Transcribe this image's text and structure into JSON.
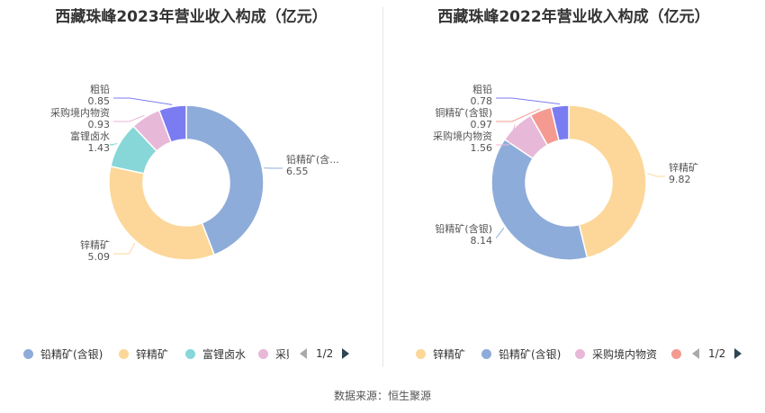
{
  "charts": [
    {
      "id": "left",
      "title": "西藏珠峰2023年营业收入构成（亿元）",
      "chart_data": {
        "type": "pie",
        "title": "西藏珠峰2023年营业收入构成（亿元）",
        "slices": [
          {
            "name": "铅精矿(含银)",
            "label": "铅精矿(含...",
            "value": 6.55,
            "value_label": "6.55",
            "color": "#8eacd9"
          },
          {
            "name": "锌精矿",
            "label": "锌精矿",
            "value": 5.09,
            "value_label": "5.09",
            "color": "#fcd799"
          },
          {
            "name": "富锂卤水",
            "label": "富锂卤水",
            "value": 1.43,
            "value_label": "1.43",
            "color": "#87d7d8"
          },
          {
            "name": "采购境内物资",
            "label": "采购境内物资",
            "value": 0.93,
            "value_label": "0.93",
            "color": "#e8b8d8"
          },
          {
            "name": "粗铅",
            "label": "粗铅",
            "value": 0.85,
            "value_label": "0.85",
            "color": "#7b7cf2"
          }
        ],
        "legend_position": "bottom"
      },
      "legend": {
        "items": [
          {
            "label": "铅精矿(含银)",
            "color": "#8eacd9"
          },
          {
            "label": "锌精矿",
            "color": "#fcd799"
          },
          {
            "label": "富锂卤水",
            "color": "#87d7d8"
          },
          {
            "label": "采购境内物资",
            "color": "#e8b8d8"
          }
        ],
        "page": "1/2"
      }
    },
    {
      "id": "right",
      "title": "西藏珠峰2022年营业收入构成（亿元）",
      "chart_data": {
        "type": "pie",
        "title": "西藏珠峰2022年营业收入构成（亿元）",
        "slices": [
          {
            "name": "锌精矿",
            "label": "锌精矿",
            "value": 9.82,
            "value_label": "9.82",
            "color": "#fcd799"
          },
          {
            "name": "铅精矿(含银)",
            "label": "铅精矿(含银)",
            "value": 8.14,
            "value_label": "8.14",
            "color": "#8eacd9"
          },
          {
            "name": "采购境内物资",
            "label": "采购境内物资",
            "value": 1.56,
            "value_label": "1.56",
            "color": "#e8b8d8"
          },
          {
            "name": "铜精矿(含银)",
            "label": "铜精矿(含银)",
            "value": 0.97,
            "value_label": "0.97",
            "color": "#f59a91"
          },
          {
            "name": "粗铅",
            "label": "粗铅",
            "value": 0.78,
            "value_label": "0.78",
            "color": "#7b7cf2"
          }
        ],
        "legend_position": "bottom"
      },
      "legend": {
        "items": [
          {
            "label": "锌精矿",
            "color": "#fcd799"
          },
          {
            "label": "铅精矿(含银)",
            "color": "#8eacd9"
          },
          {
            "label": "采购境内物资",
            "color": "#e8b8d8"
          },
          {
            "label": "",
            "color": "#f59a91"
          }
        ],
        "page": "1/2"
      }
    }
  ],
  "source": "数据来源：恒生聚源"
}
